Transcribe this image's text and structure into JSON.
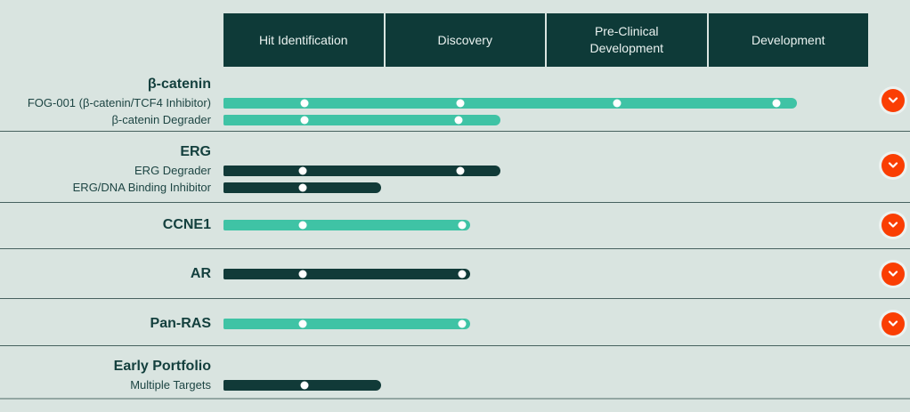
{
  "colors": {
    "page-bg": "#d9e4e0",
    "header-bg": "#0e3a38",
    "header-text": "#eaf2f0",
    "bar-teal": "#3fc3a5",
    "bar-dark": "#113a38",
    "accent-orange": "#fa3e03",
    "title-text": "#14403e",
    "label-text": "#1d4543",
    "divider": "#47615f",
    "bottom-line": "#93a7a3",
    "milestone-dot": "#ffffff"
  },
  "icons": {
    "expand": "chevron-down-icon"
  },
  "chart_data": {
    "type": "bar",
    "orientation": "horizontal",
    "stages": [
      "Hit Identification",
      "Discovery",
      "Pre-Clinical Development",
      "Development"
    ],
    "stage_count": 4,
    "note": "progress_stages and milestones_stages are measured in stage-width units (0 = start of Hit Identification, 4 = end of Development)",
    "groups": [
      {
        "target": "β-catenin",
        "expandable": true,
        "programs": [
          {
            "name": "FOG-001 (β-catenin/TCF4 Inhibitor)",
            "color": "teal",
            "progress_stages": 3.56,
            "milestones_stages": [
              0.5,
              1.47,
              2.44,
              3.43
            ]
          },
          {
            "name": "β-catenin Degrader",
            "color": "teal",
            "progress_stages": 1.72,
            "milestones_stages": [
              0.5,
              1.46
            ]
          }
        ]
      },
      {
        "target": "ERG",
        "expandable": true,
        "programs": [
          {
            "name": "ERG Degrader",
            "color": "dark",
            "progress_stages": 1.72,
            "milestones_stages": [
              0.49,
              1.47
            ]
          },
          {
            "name": "ERG/DNA Binding Inhibitor",
            "color": "dark",
            "progress_stages": 0.98,
            "milestones_stages": [
              0.49
            ]
          }
        ]
      },
      {
        "target": "CCNE1",
        "expandable": true,
        "programs": [
          {
            "name": "",
            "color": "teal",
            "progress_stages": 1.53,
            "milestones_stages": [
              0.49,
              1.48
            ]
          }
        ]
      },
      {
        "target": "AR",
        "expandable": true,
        "programs": [
          {
            "name": "",
            "color": "dark",
            "progress_stages": 1.53,
            "milestones_stages": [
              0.49,
              1.48
            ]
          }
        ]
      },
      {
        "target": "Pan-RAS",
        "expandable": true,
        "programs": [
          {
            "name": "",
            "color": "teal",
            "progress_stages": 1.53,
            "milestones_stages": [
              0.49,
              1.48
            ]
          }
        ]
      },
      {
        "target": "Early Portfolio",
        "expandable": false,
        "programs": [
          {
            "name": "Multiple Targets",
            "color": "dark",
            "progress_stages": 0.98,
            "milestones_stages": [
              0.5
            ]
          }
        ]
      }
    ]
  }
}
